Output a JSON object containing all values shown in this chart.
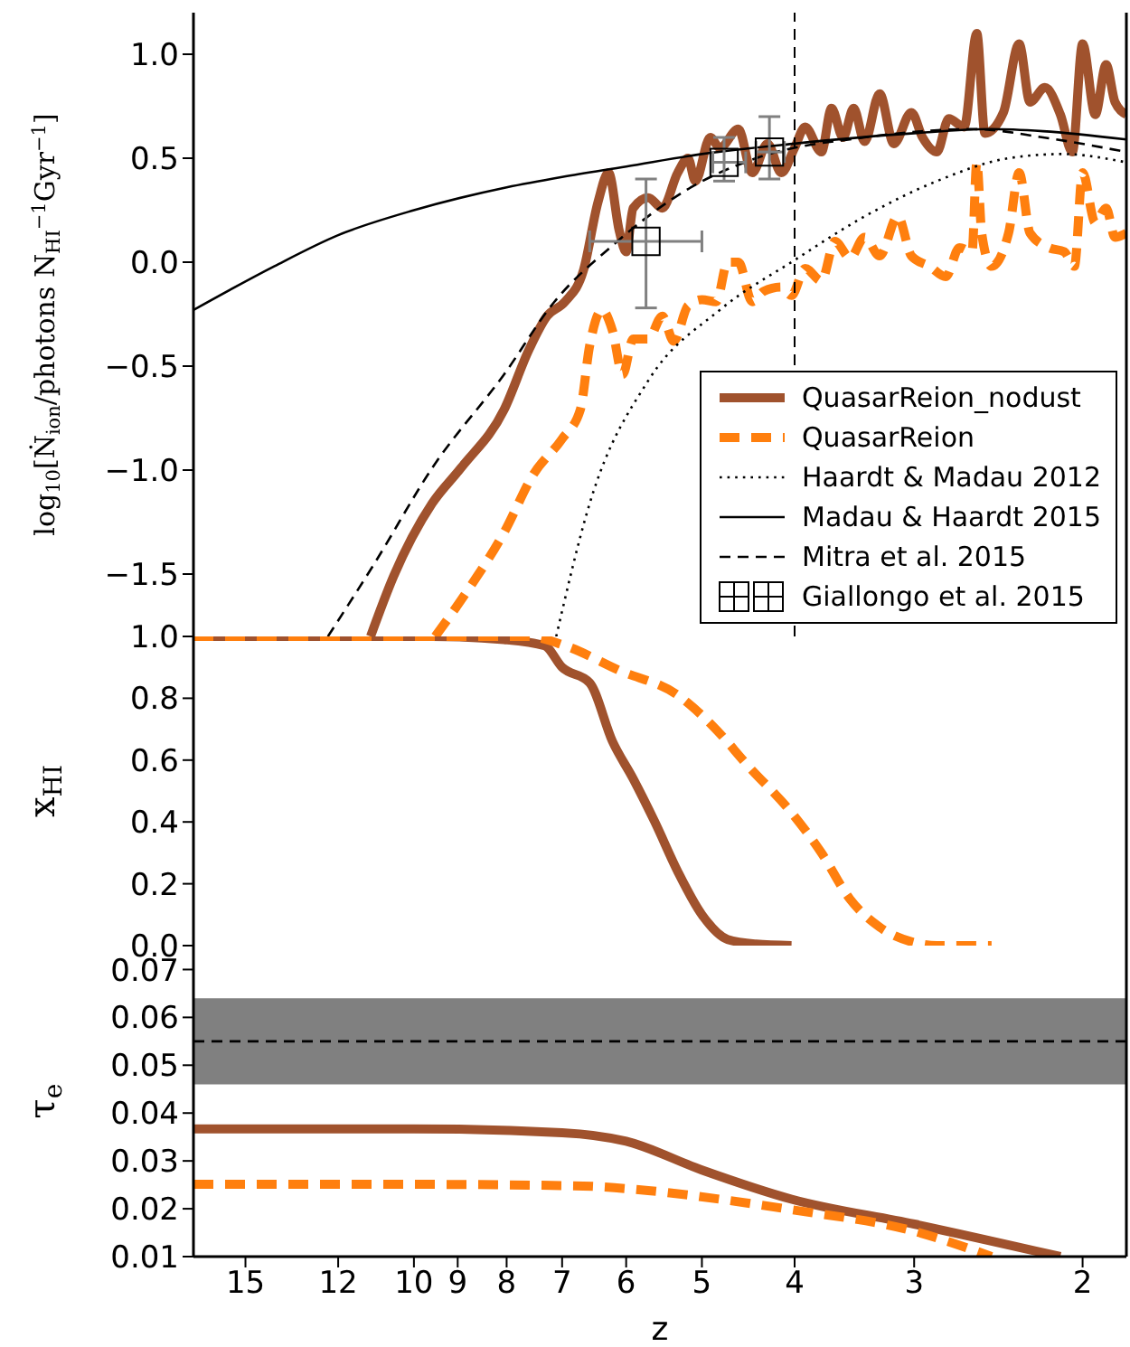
{
  "chart_data": [
    {
      "type": "line",
      "ylabel": "log$_{10}$[Ṅ$_{ion}$/photons N$_{HI}$$^{−1}$Gyr$^{−1}$]",
      "xlim": [
        17,
        1.8
      ],
      "xticks": [
        15,
        12,
        10,
        9,
        8,
        7,
        6,
        5,
        4,
        3,
        2
      ],
      "ylim": [
        -1.8,
        1.2
      ],
      "yticks": [
        {
          "value": -1.5,
          "label": "−1.5"
        },
        {
          "value": -1,
          "label": "−1.0"
        },
        {
          "value": -0.5,
          "label": "−0.5"
        },
        {
          "value": 0,
          "label": "0.0"
        },
        {
          "value": 0.5,
          "label": "0.5"
        },
        {
          "value": 1,
          "label": "1.0"
        }
      ],
      "tick_labels": "y",
      "legend": "bottom right",
      "log": "x",
      "ref_lines": [
        {
          "axis": "x",
          "value": 4,
          "color": "#000000",
          "line_style": "dashed"
        }
      ],
      "series": [
        {
          "name": "QuasarReion_nodust",
          "color": "#a0522d",
          "line_style": "solid",
          "x": [
            11.1,
            10.5,
            9.57,
            8.93,
            8.05,
            7.58,
            7.26,
            6.95,
            6.65,
            6.42,
            6.26,
            6.1,
            6.0,
            5.9,
            5.69,
            5.5,
            5.3,
            5.17,
            5.08,
            4.9,
            4.79,
            4.58,
            4.43,
            4.27,
            4.13,
            4.0,
            3.9,
            3.75,
            3.66,
            3.56,
            3.47,
            3.38,
            3.26,
            3.15,
            3.02,
            2.94,
            2.84,
            2.76,
            2.66,
            2.58,
            2.53,
            2.42,
            2.33,
            2.27,
            2.19,
            2.11,
            2.05,
            2.0,
            1.94,
            1.89,
            1.85,
            1.8
          ],
          "values": [
            -1.8,
            -1.51,
            -1.16,
            -0.99,
            -0.71,
            -0.42,
            -0.26,
            -0.19,
            -0.04,
            0.29,
            0.43,
            0.15,
            0.05,
            0.26,
            0.31,
            0.26,
            0.43,
            0.5,
            0.39,
            0.6,
            0.55,
            0.64,
            0.43,
            0.57,
            0.43,
            0.55,
            0.65,
            0.53,
            0.74,
            0.6,
            0.74,
            0.58,
            0.81,
            0.57,
            0.72,
            0.6,
            0.53,
            0.69,
            0.65,
            1.1,
            0.62,
            0.72,
            1.05,
            0.77,
            0.84,
            0.71,
            0.53,
            1.05,
            0.71,
            0.95,
            0.77,
            0.71
          ]
        },
        {
          "name": "QuasarReion",
          "color": "#ff7f0e",
          "line_style": "dashed",
          "x": [
            9.5,
            8.79,
            8.05,
            7.5,
            7.0,
            6.7,
            6.55,
            6.36,
            6.2,
            6.05,
            5.9,
            5.69,
            5.5,
            5.35,
            5.17,
            5.0,
            4.83,
            4.7,
            4.58,
            4.43,
            4.31,
            4.13,
            4.03,
            3.9,
            3.75,
            3.63,
            3.5,
            3.38,
            3.26,
            3.12,
            3.02,
            2.89,
            2.78,
            2.69,
            2.61,
            2.58,
            2.55,
            2.49,
            2.39,
            2.33,
            2.27,
            2.17,
            2.09,
            2.04,
            2.0,
            1.94,
            1.89,
            1.85,
            1.8
          ],
          "values": [
            -1.8,
            -1.58,
            -1.3,
            -1.02,
            -0.85,
            -0.71,
            -0.4,
            -0.23,
            -0.33,
            -0.54,
            -0.37,
            -0.37,
            -0.26,
            -0.38,
            -0.21,
            -0.18,
            -0.19,
            0.0,
            0.0,
            -0.19,
            -0.14,
            -0.12,
            -0.16,
            -0.03,
            -0.09,
            0.1,
            0.02,
            0.12,
            0.03,
            0.22,
            0.03,
            -0.02,
            -0.07,
            0.07,
            0.05,
            0.48,
            0.14,
            -0.02,
            0.14,
            0.43,
            0.14,
            0.07,
            0.05,
            -0.02,
            0.43,
            0.19,
            0.26,
            0.12,
            0.14
          ]
        },
        {
          "name": "Haardt & Madau 2012",
          "color": "#000000",
          "line_style": "dotted",
          "x": [
            7.1,
            6.55,
            5.69,
            4.79,
            4.0,
            3.38,
            2.84,
            2.39,
            2.1,
            1.8
          ],
          "values": [
            -1.8,
            -1.16,
            -0.57,
            -0.23,
            0.01,
            0.22,
            0.39,
            0.5,
            0.52,
            0.48
          ]
        },
        {
          "name": "Madau & Haardt 2015",
          "color": "#000000",
          "line_style": "solid",
          "x": [
            17,
            14,
            12,
            10,
            8,
            7,
            6,
            5,
            4,
            3,
            2.5,
            2.2,
            1.8
          ],
          "values": [
            -0.23,
            -0.02,
            0.13,
            0.25,
            0.36,
            0.41,
            0.46,
            0.52,
            0.57,
            0.62,
            0.64,
            0.63,
            0.59
          ]
        },
        {
          "name": "Mitra et al. 2015",
          "color": "#000000",
          "line_style": "dashed",
          "x": [
            12.3,
            11,
            9.57,
            8.05,
            7.13,
            6.2,
            5.22,
            4.39,
            3.38,
            2.6,
            2.2,
            1.8
          ],
          "values": [
            -1.8,
            -1.45,
            -0.99,
            -0.54,
            -0.19,
            0.08,
            0.34,
            0.5,
            0.6,
            0.64,
            0.6,
            0.53
          ]
        },
        {
          "name": "Giallongo et al. 2015",
          "type": "scatter",
          "color": "#000000",
          "marker": "square",
          "x": [
            5.72,
            4.74,
            4.25
          ],
          "values": [
            0.1,
            0.48,
            0.53
          ],
          "errors": [
            [
              -0.22,
              0.4
            ],
            [
              0.39,
              0.6
            ],
            [
              0.4,
              0.7
            ]
          ],
          "xerrors": [
            [
              5.0,
              6.55
            ],
            [
              4.5,
              4.87
            ],
            [
              4.1,
              4.39
            ]
          ]
        }
      ]
    },
    {
      "type": "line",
      "ylabel": "x$_{HI}$",
      "log": "x",
      "xlim": [
        17,
        1.8
      ],
      "xticks": [
        15,
        12,
        10,
        9,
        8,
        7,
        6,
        5,
        4,
        3,
        2
      ],
      "ylim": [
        0,
        1
      ],
      "yticks": [
        {
          "value": 0,
          "label": "0.0"
        },
        {
          "value": 0.2,
          "label": "0.2"
        },
        {
          "value": 0.4,
          "label": "0.4"
        },
        {
          "value": 0.6,
          "label": "0.6"
        },
        {
          "value": 0.8,
          "label": "0.8"
        },
        {
          "value": 1,
          "label": "1.0"
        }
      ],
      "tick_labels": "y",
      "series": [
        {
          "color": "#a0522d",
          "line_style": "solid",
          "x": [
            17,
            9.57,
            8.05,
            7.3,
            7.0,
            6.55,
            6.2,
            5.9,
            5.6,
            5.3,
            5.0,
            4.7,
            4.39,
            4.03
          ],
          "values": [
            1,
            1,
            0.99,
            0.97,
            0.9,
            0.85,
            0.66,
            0.54,
            0.4,
            0.24,
            0.1,
            0.02,
            0.005,
            0
          ]
        },
        {
          "color": "#ff7f0e",
          "line_style": "dashed",
          "x": [
            17,
            7.6,
            6.95,
            6.1,
            5.3,
            4.87,
            4.47,
            4.03,
            3.75,
            3.5,
            3.26,
            3.0,
            2.84,
            2.49
          ],
          "values": [
            1,
            1,
            0.97,
            0.89,
            0.81,
            0.71,
            0.58,
            0.43,
            0.3,
            0.15,
            0.06,
            0.01,
            0,
            0
          ]
        }
      ]
    },
    {
      "type": "line",
      "ylabel": "τ$_{e}$",
      "xlabel": "z",
      "log": "x",
      "xlim": [
        17,
        1.8
      ],
      "xticks": [
        15,
        12,
        10,
        9,
        8,
        7,
        6,
        5,
        4,
        3,
        2
      ],
      "ylim": [
        0.01,
        0.075
      ],
      "yticks": [
        0.01,
        0.02,
        0.03,
        0.04,
        0.05,
        0.06,
        0.07
      ],
      "bands": [
        {
          "axis": "y",
          "from": 0.046,
          "to": 0.064,
          "color": "#808080"
        }
      ],
      "ref_lines": [
        {
          "axis": "y",
          "value": 0.055,
          "color": "#000000",
          "line_style": "dashed"
        }
      ],
      "series": [
        {
          "color": "#a0522d",
          "line_style": "solid",
          "x": [
            17,
            10,
            7.0,
            6.0,
            5.0,
            4.03,
            3.0,
            2.11
          ],
          "values": [
            0.0367,
            0.0367,
            0.0359,
            0.0341,
            0.0281,
            0.022,
            0.0168,
            0.01
          ]
        },
        {
          "color": "#ff7f0e",
          "line_style": "dashed",
          "x": [
            17,
            10,
            6.8,
            5.69,
            4.79,
            4.03,
            3.0,
            2.49
          ],
          "values": [
            0.0251,
            0.0251,
            0.0248,
            0.0238,
            0.022,
            0.0198,
            0.0153,
            0.01
          ]
        }
      ]
    }
  ]
}
